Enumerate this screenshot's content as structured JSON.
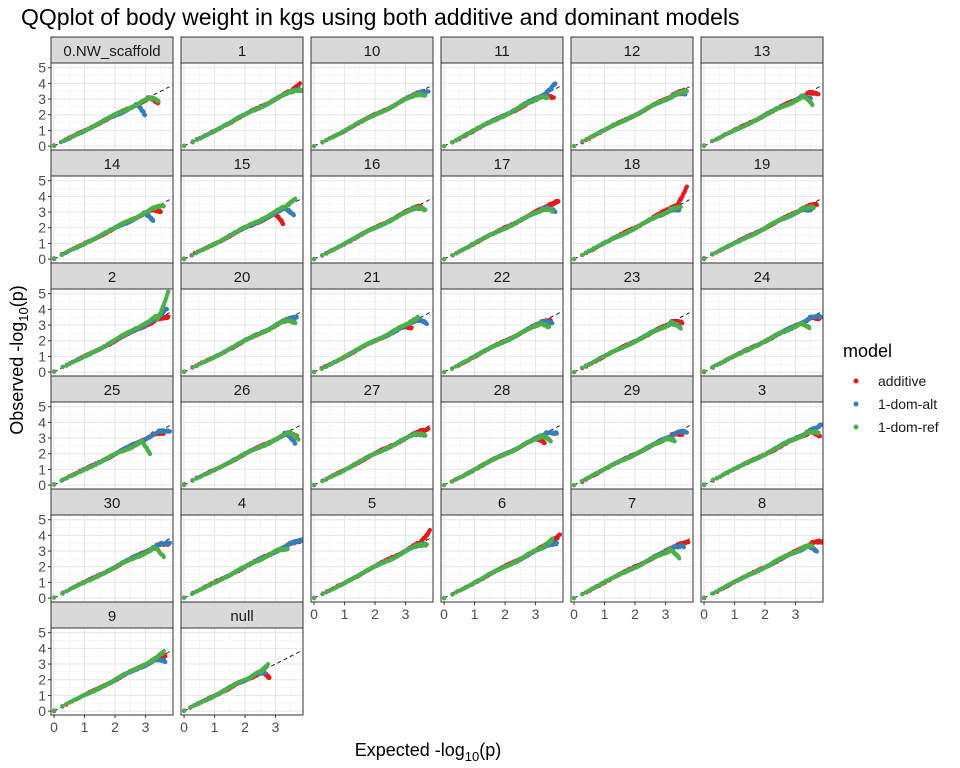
{
  "chart_data": {
    "type": "scatter",
    "title": "QQplot of body weight in kgs using both additive and dominant models",
    "xlabel": {
      "main": "Expected -log",
      "sub": "10",
      "tail": "(p)"
    },
    "ylabel": {
      "main": "Observed -log",
      "sub": "10",
      "tail": "(p)"
    },
    "xlim": [
      -0.1,
      3.9
    ],
    "ylim": [
      -0.25,
      5.3
    ],
    "x_ticks": [
      "0",
      "1",
      "2",
      "3"
    ],
    "y_ticks": [
      "0",
      "1",
      "2",
      "3",
      "4",
      "5"
    ],
    "grid": true,
    "reference_line": "y = x (dashed)",
    "legend": {
      "title": "model",
      "placement": "right",
      "items": [
        {
          "label": "additive",
          "color": "#e41a1c"
        },
        {
          "label": "1-dom-alt",
          "color": "#377eb8"
        },
        {
          "label": "1-dom-ref",
          "color": "#4daf4a"
        }
      ]
    },
    "facets": [
      {
        "label": "0.NW_scaffold",
        "max_x": 3.3,
        "dev": {
          "additive": [
            0.12,
            -0.7
          ],
          "1-dom-alt": [
            -0.32,
            -1.0
          ],
          "1-dom-ref": [
            0.12,
            -0.55
          ]
        }
      },
      {
        "label": "1",
        "max_x": 3.8,
        "dev": {
          "additive": [
            0.0,
            0.15
          ],
          "1-dom-alt": [
            -0.05,
            -0.15
          ],
          "1-dom-ref": [
            0.05,
            -0.3
          ]
        }
      },
      {
        "label": "10",
        "max_x": 3.7,
        "dev": {
          "additive": [
            -0.1,
            -0.1
          ],
          "1-dom-alt": [
            0.05,
            -0.25
          ],
          "1-dom-ref": [
            -0.05,
            -0.45
          ]
        }
      },
      {
        "label": "11",
        "max_x": 3.6,
        "dev": {
          "additive": [
            0.0,
            -0.55
          ],
          "1-dom-alt": [
            0.05,
            0.35
          ],
          "1-dom-ref": [
            -0.2,
            -0.3
          ]
        }
      },
      {
        "label": "12",
        "max_x": 3.6,
        "dev": {
          "additive": [
            0.0,
            0.0
          ],
          "1-dom-alt": [
            0.05,
            -0.3
          ],
          "1-dom-ref": [
            0.1,
            -0.2
          ]
        }
      },
      {
        "label": "13",
        "max_x": 3.6,
        "dev": {
          "additive": [
            0.15,
            -0.4
          ],
          "1-dom-alt": [
            -0.1,
            -0.5
          ],
          "1-dom-ref": [
            -0.05,
            -0.9
          ]
        }
      },
      {
        "label": "14",
        "max_x": 3.5,
        "dev": {
          "additive": [
            0.0,
            -0.5
          ],
          "1-dom-alt": [
            -0.25,
            -0.8
          ],
          "1-dom-ref": [
            0.1,
            -0.2
          ]
        }
      },
      {
        "label": "15",
        "max_x": 3.5,
        "dev": {
          "additive": [
            -0.25,
            -1.0
          ],
          "1-dom-alt": [
            0.1,
            -0.8
          ],
          "1-dom-ref": [
            0.15,
            0.2
          ]
        }
      },
      {
        "label": "16",
        "max_x": 3.6,
        "dev": {
          "additive": [
            -0.1,
            -0.1
          ],
          "1-dom-alt": [
            0.0,
            -0.4
          ],
          "1-dom-ref": [
            0.05,
            -0.5
          ]
        }
      },
      {
        "label": "17",
        "max_x": 3.6,
        "dev": {
          "additive": [
            0.15,
            -0.05
          ],
          "1-dom-alt": [
            0.05,
            -0.6
          ],
          "1-dom-ref": [
            -0.05,
            -0.5
          ]
        }
      },
      {
        "label": "18",
        "max_x": 3.5,
        "dev": {
          "additive": [
            0.2,
            0.9
          ],
          "1-dom-alt": [
            -0.05,
            -0.35
          ],
          "1-dom-ref": [
            0.0,
            -0.2
          ]
        }
      },
      {
        "label": "19",
        "max_x": 3.6,
        "dev": {
          "additive": [
            0.1,
            -0.2
          ],
          "1-dom-alt": [
            -0.1,
            -0.4
          ],
          "1-dom-ref": [
            0.0,
            -0.3
          ]
        }
      },
      {
        "label": "2",
        "max_x": 3.7,
        "dev": {
          "additive": [
            0.05,
            -0.25
          ],
          "1-dom-alt": [
            0.0,
            0.35
          ],
          "1-dom-ref": [
            0.05,
            1.4
          ]
        }
      },
      {
        "label": "20",
        "max_x": 3.5,
        "dev": {
          "additive": [
            0.1,
            -0.3
          ],
          "1-dom-alt": [
            0.2,
            -0.2
          ],
          "1-dom-ref": [
            0.15,
            -0.5
          ]
        }
      },
      {
        "label": "21",
        "max_x": 3.4,
        "dev": {
          "additive": [
            -0.2,
            -0.4
          ],
          "1-dom-alt": [
            0.3,
            -0.6
          ],
          "1-dom-ref": [
            0.0,
            0.1
          ]
        }
      },
      {
        "label": "22",
        "max_x": 3.5,
        "dev": {
          "additive": [
            0.0,
            -0.2
          ],
          "1-dom-alt": [
            0.05,
            -0.4
          ],
          "1-dom-ref": [
            -0.05,
            -0.6
          ]
        }
      },
      {
        "label": "23",
        "max_x": 3.5,
        "dev": {
          "additive": [
            0.05,
            -0.4
          ],
          "1-dom-alt": [
            -0.05,
            -0.5
          ],
          "1-dom-ref": [
            0.0,
            -0.7
          ]
        }
      },
      {
        "label": "24",
        "max_x": 3.7,
        "dev": {
          "additive": [
            0.1,
            -0.4
          ],
          "1-dom-alt": [
            0.15,
            -0.3
          ],
          "1-dom-ref": [
            -0.25,
            -0.6
          ]
        }
      },
      {
        "label": "25",
        "max_x": 3.5,
        "dev": {
          "additive": [
            0.1,
            -0.3
          ],
          "1-dom-alt": [
            0.3,
            -0.4
          ],
          "1-dom-ref": [
            -0.35,
            -1.2
          ]
        }
      },
      {
        "label": "26",
        "max_x": 3.7,
        "dev": {
          "additive": [
            0.0,
            -0.6
          ],
          "1-dom-alt": [
            -0.05,
            -1.0
          ],
          "1-dom-ref": [
            0.05,
            -0.8
          ]
        }
      },
      {
        "label": "27",
        "max_x": 3.6,
        "dev": {
          "additive": [
            0.15,
            -0.2
          ],
          "1-dom-alt": [
            0.0,
            -0.4
          ],
          "1-dom-ref": [
            0.05,
            -0.5
          ]
        }
      },
      {
        "label": "28",
        "max_x": 3.5,
        "dev": {
          "additive": [
            -0.2,
            -0.6
          ],
          "1-dom-alt": [
            0.2,
            -0.4
          ],
          "1-dom-ref": [
            0.0,
            -0.7
          ]
        }
      },
      {
        "label": "29",
        "max_x": 3.5,
        "dev": {
          "additive": [
            0.05,
            -0.3
          ],
          "1-dom-alt": [
            0.2,
            -0.3
          ],
          "1-dom-ref": [
            -0.2,
            -0.5
          ]
        }
      },
      {
        "label": "3",
        "max_x": 3.8,
        "dev": {
          "additive": [
            0.0,
            -0.7
          ],
          "1-dom-alt": [
            0.05,
            0.0
          ],
          "1-dom-ref": [
            -0.05,
            -0.4
          ]
        }
      },
      {
        "label": "30",
        "max_x": 3.7,
        "dev": {
          "additive": [
            0.05,
            -0.3
          ],
          "1-dom-alt": [
            0.1,
            -0.3
          ],
          "1-dom-ref": [
            -0.1,
            -1.0
          ]
        }
      },
      {
        "label": "4",
        "max_x": 3.6,
        "dev": {
          "additive": [
            0.25,
            -0.2
          ],
          "1-dom-alt": [
            0.3,
            -0.2
          ],
          "1-dom-ref": [
            -0.2,
            -0.3
          ]
        }
      },
      {
        "label": "5",
        "max_x": 3.7,
        "dev": {
          "additive": [
            0.1,
            0.5
          ],
          "1-dom-alt": [
            -0.05,
            -0.2
          ],
          "1-dom-ref": [
            0.0,
            -0.3
          ]
        }
      },
      {
        "label": "6",
        "max_x": 3.7,
        "dev": {
          "additive": [
            0.1,
            0.3
          ],
          "1-dom-alt": [
            0.0,
            -0.2
          ],
          "1-dom-ref": [
            -0.15,
            0.2
          ]
        }
      },
      {
        "label": "7",
        "max_x": 3.6,
        "dev": {
          "additive": [
            0.15,
            -0.2
          ],
          "1-dom-alt": [
            0.0,
            -0.3
          ],
          "1-dom-ref": [
            -0.15,
            -0.9
          ]
        }
      },
      {
        "label": "8",
        "max_x": 3.7,
        "dev": {
          "additive": [
            0.2,
            -0.3
          ],
          "1-dom-alt": [
            0.0,
            -0.7
          ],
          "1-dom-ref": [
            -0.15,
            -0.2
          ]
        }
      },
      {
        "label": "9",
        "max_x": 3.6,
        "dev": {
          "additive": [
            0.05,
            -0.1
          ],
          "1-dom-alt": [
            0.05,
            -0.5
          ],
          "1-dom-ref": [
            0.0,
            0.2
          ]
        }
      },
      {
        "label": "null",
        "max_x": 2.6,
        "dev": {
          "additive": [
            0.2,
            -0.7
          ],
          "1-dom-alt": [
            0.05,
            -0.2
          ],
          "1-dom-ref": [
            0.15,
            0.2
          ]
        }
      }
    ]
  }
}
